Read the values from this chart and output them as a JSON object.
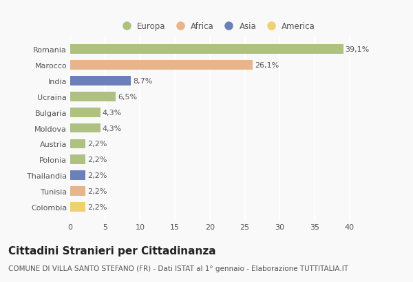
{
  "countries": [
    "Romania",
    "Marocco",
    "India",
    "Ucraina",
    "Bulgaria",
    "Moldova",
    "Austria",
    "Polonia",
    "Thailandia",
    "Tunisia",
    "Colombia"
  ],
  "values": [
    39.1,
    26.1,
    8.7,
    6.5,
    4.3,
    4.3,
    2.2,
    2.2,
    2.2,
    2.2,
    2.2
  ],
  "labels": [
    "39,1%",
    "26,1%",
    "8,7%",
    "6,5%",
    "4,3%",
    "4,3%",
    "2,2%",
    "2,2%",
    "2,2%",
    "2,2%",
    "2,2%"
  ],
  "colors": [
    "#aec180",
    "#e8b48a",
    "#6b7fba",
    "#aec180",
    "#aec180",
    "#aec180",
    "#aec180",
    "#aec180",
    "#6b7fba",
    "#e8b48a",
    "#f0d070"
  ],
  "legend_labels": [
    "Europa",
    "Africa",
    "Asia",
    "America"
  ],
  "legend_colors": [
    "#aec180",
    "#e8b48a",
    "#6b7fba",
    "#f0d070"
  ],
  "title": "Cittadini Stranieri per Cittadinanza",
  "subtitle": "COMUNE DI VILLA SANTO STEFANO (FR) - Dati ISTAT al 1° gennaio - Elaborazione TUTTITALIA.IT",
  "xlim": [
    0,
    42
  ],
  "xticks": [
    0,
    5,
    10,
    15,
    20,
    25,
    30,
    35,
    40
  ],
  "background_color": "#f9f9f9",
  "grid_color": "#ffffff",
  "title_fontsize": 11,
  "subtitle_fontsize": 7.5,
  "label_fontsize": 8,
  "tick_fontsize": 8,
  "legend_fontsize": 8.5
}
